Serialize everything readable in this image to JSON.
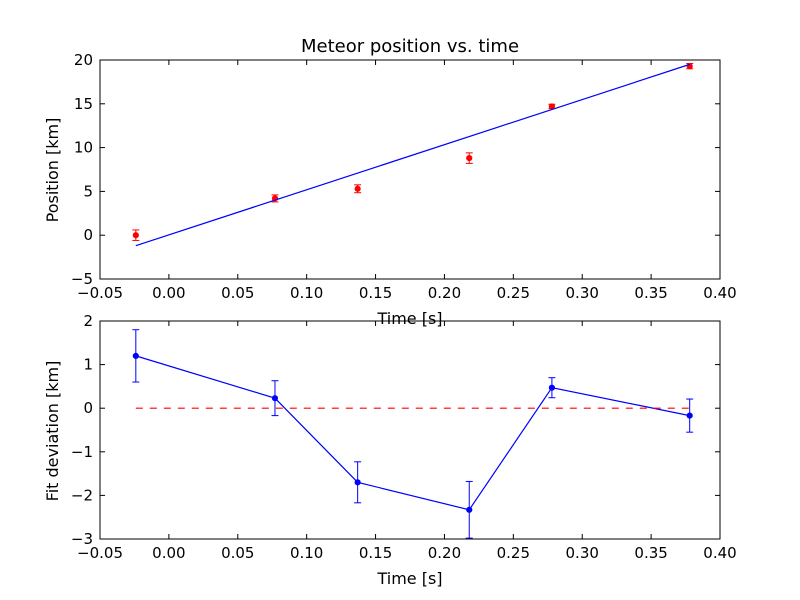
{
  "chart_data": [
    {
      "type": "scatter",
      "title": "Meteor position vs. time",
      "xlabel": "Time [s]",
      "ylabel": "Position [km]",
      "xlim": [
        -0.05,
        0.4
      ],
      "ylim": [
        -5,
        20
      ],
      "xticks": [
        "−0.05",
        "0.00",
        "0.05",
        "0.10",
        "0.15",
        "0.20",
        "0.25",
        "0.30",
        "0.35",
        "0.40"
      ],
      "yticks": [
        "−5",
        "0",
        "5",
        "10",
        "15",
        "20"
      ],
      "grid": false,
      "series": [
        {
          "kind": "errorbar-points",
          "color": "#ff0000",
          "x": [
            -0.024,
            0.077,
            0.137,
            0.218,
            0.278,
            0.378
          ],
          "y": [
            0.0,
            4.2,
            5.3,
            8.8,
            14.7,
            19.3
          ],
          "yerr": [
            0.6,
            0.4,
            0.45,
            0.6,
            0.25,
            0.3
          ]
        },
        {
          "kind": "fit-line",
          "color": "#0000ff",
          "x": [
            -0.024,
            0.378
          ],
          "y": [
            -1.2,
            19.5
          ]
        }
      ]
    },
    {
      "type": "line",
      "title": "",
      "xlabel": "Time [s]",
      "ylabel": "Fit deviation [km]",
      "xlim": [
        -0.05,
        0.4
      ],
      "ylim": [
        -3,
        2
      ],
      "xticks": [
        "−0.05",
        "0.00",
        "0.05",
        "0.10",
        "0.15",
        "0.20",
        "0.25",
        "0.30",
        "0.35",
        "0.40"
      ],
      "yticks": [
        "−3",
        "−2",
        "−1",
        "0",
        "1",
        "2"
      ],
      "grid": false,
      "series": [
        {
          "kind": "errorbar-line",
          "color": "#0000ff",
          "x": [
            -0.024,
            0.077,
            0.137,
            0.218,
            0.278,
            0.378
          ],
          "y": [
            1.2,
            0.23,
            -1.7,
            -2.33,
            0.47,
            -0.17
          ],
          "yerr": [
            0.6,
            0.4,
            0.47,
            0.65,
            0.23,
            0.38
          ]
        },
        {
          "kind": "zero-line",
          "color": "#ff0000",
          "x": [
            -0.024,
            0.378
          ],
          "y": [
            0,
            0
          ]
        }
      ]
    }
  ]
}
